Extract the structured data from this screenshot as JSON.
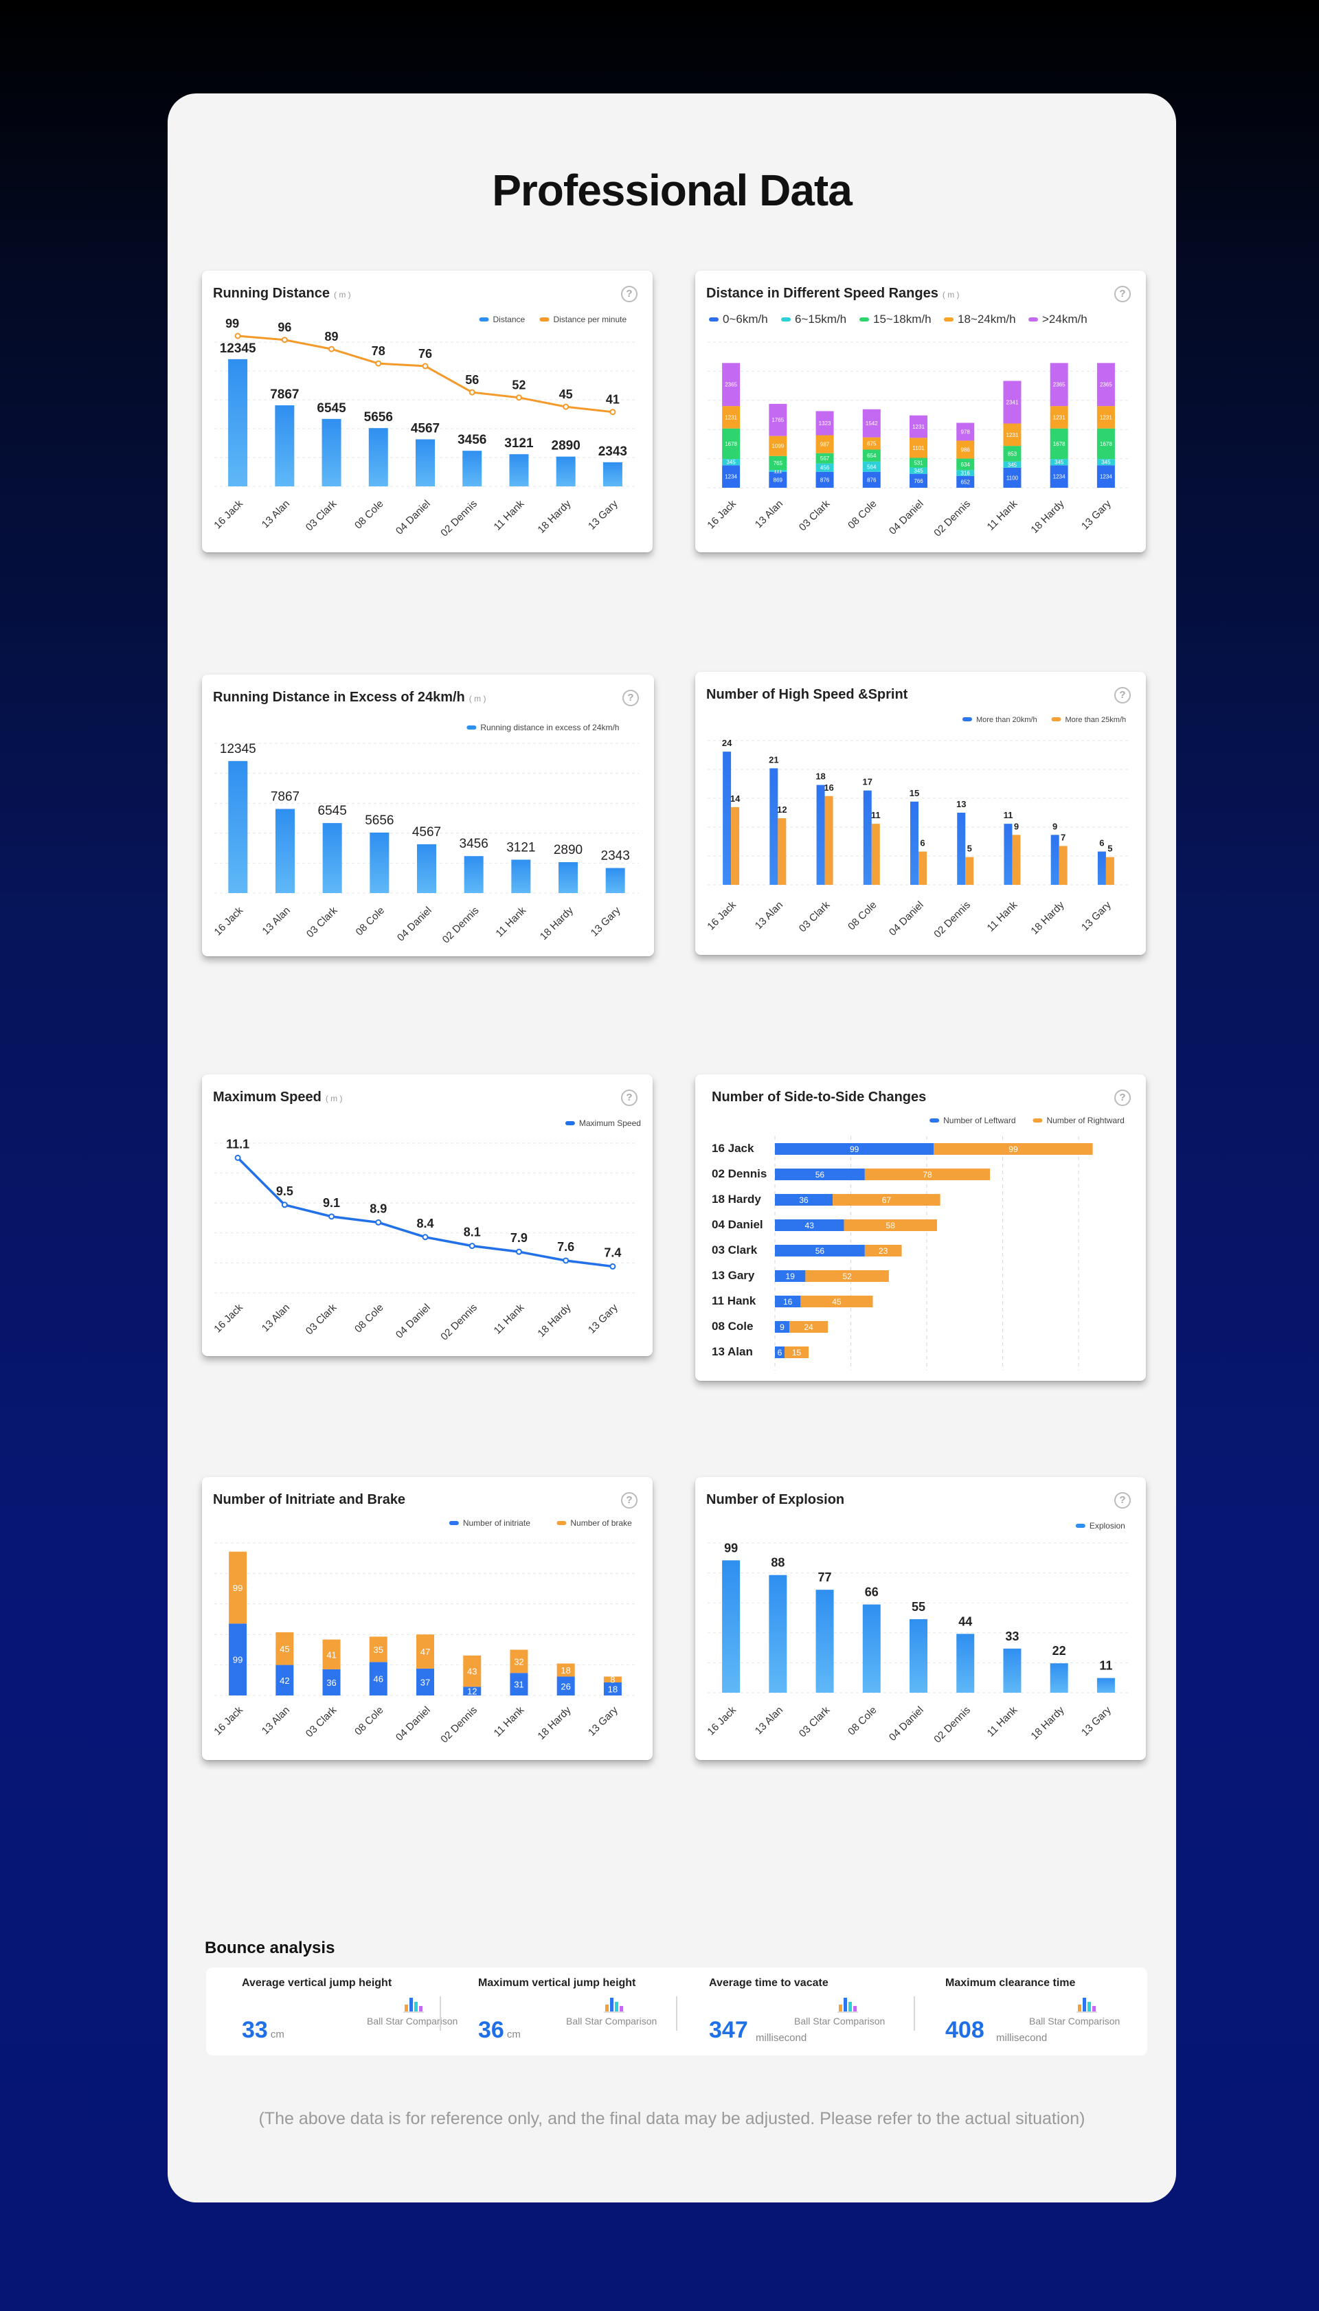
{
  "page_title": "Professional Data",
  "help_icon": "help-circle-icon",
  "chart_data": [
    {
      "id": "running-distance",
      "type": "bar",
      "title": "Running Distance",
      "unit": "( m )",
      "categories": [
        "16 Jack",
        "13 Alan",
        "03 Clark",
        "08 Cole",
        "04 Daniel",
        "02 Dennis",
        "11 Hank",
        "18 Hardy",
        "13 Gary"
      ],
      "series": [
        {
          "name": "Distance",
          "type": "bar",
          "color": "#2f8ff0",
          "values": [
            12345,
            7867,
            6545,
            5656,
            4567,
            3456,
            3121,
            2890,
            2343
          ]
        },
        {
          "name": "Distance per minute",
          "type": "line",
          "color": "#f39a2b",
          "values": [
            99,
            96,
            89,
            78,
            76,
            56,
            52,
            45,
            41
          ]
        }
      ],
      "ylim": [
        0,
        14000
      ],
      "y2lim": [
        0,
        110
      ],
      "legend": "top-right"
    },
    {
      "id": "speed-ranges",
      "type": "bar",
      "stacked": true,
      "title": "Distance in Different Speed Ranges",
      "unit": "( m )",
      "categories": [
        "16 Jack",
        "13 Alan",
        "03 Clark",
        "08 Cole",
        "04 Daniel",
        "02 Dennis",
        "11 Hank",
        "18 Hardy",
        "13 Gary"
      ],
      "series": [
        {
          "name": "0~6km/h",
          "color": "#2d6ef0",
          "values": [
            1234,
            869,
            876,
            876,
            766,
            652,
            1100,
            1234,
            1234
          ]
        },
        {
          "name": "6~15km/h",
          "color": "#2ed0d8",
          "values": [
            345,
            111,
            456,
            564,
            345,
            316,
            345,
            345,
            345
          ]
        },
        {
          "name": "15~18km/h",
          "color": "#2ed46e",
          "values": [
            1678,
            765,
            567,
            654,
            531,
            634,
            853,
            1678,
            1678
          ]
        },
        {
          "name": "18~24km/h",
          "color": "#f7a326",
          "values": [
            1231,
            1099,
            987,
            675,
            1101,
            986,
            1231,
            1231,
            1231
          ]
        },
        {
          "name": ">24km/h",
          "color": "#c46af2",
          "values": [
            2365,
            1765,
            1323,
            1542,
            1231,
            978,
            2341,
            2365,
            2365
          ]
        }
      ],
      "ylim": [
        0,
        8000
      ],
      "legend": "top"
    },
    {
      "id": "excess-24",
      "type": "bar",
      "title": "Running Distance in Excess of 24km/h",
      "unit": "( m )",
      "categories": [
        "16 Jack",
        "13 Alan",
        "03 Clark",
        "08 Cole",
        "04 Daniel",
        "02 Dennis",
        "11 Hank",
        "18 Hardy",
        "13 Gary"
      ],
      "series": [
        {
          "name": "Running distance in excess of 24km/h",
          "color": "#2f8ff0",
          "values": [
            12345,
            7867,
            6545,
            5656,
            4567,
            3456,
            3121,
            2890,
            2343
          ]
        }
      ],
      "ylim": [
        0,
        14000
      ],
      "legend": "top-right"
    },
    {
      "id": "high-speed-sprint",
      "type": "bar",
      "title": "Number of High Speed &Sprint",
      "categories": [
        "16 Jack",
        "13 Alan",
        "03 Clark",
        "08 Cole",
        "04 Daniel",
        "02 Dennis",
        "11 Hank",
        "18 Hardy",
        "13 Gary"
      ],
      "series": [
        {
          "name": "More than 20km/h",
          "color": "#2d74ef",
          "values": [
            24,
            21,
            18,
            17,
            15,
            13,
            11,
            9,
            6
          ]
        },
        {
          "name": "More than 25km/h",
          "color": "#f5a13a",
          "values": [
            14,
            12,
            16,
            11,
            6,
            5,
            9,
            7,
            5
          ]
        }
      ],
      "ylim": [
        0,
        26
      ],
      "legend": "top-right"
    },
    {
      "id": "max-speed",
      "type": "line",
      "title": "Maximum Speed",
      "unit": "( m )",
      "categories": [
        "16 Jack",
        "13 Alan",
        "03 Clark",
        "08 Cole",
        "04 Daniel",
        "02 Dennis",
        "11 Hank",
        "18 Hardy",
        "13 Gary"
      ],
      "series": [
        {
          "name": "Maximum Speed",
          "color": "#2271e8",
          "values": [
            11.1,
            9.5,
            9.1,
            8.9,
            8.4,
            8.1,
            7.9,
            7.6,
            7.4
          ]
        }
      ],
      "ylim": [
        6.5,
        11.6
      ],
      "legend": "top-right"
    },
    {
      "id": "side-to-side",
      "type": "bar",
      "orientation": "horizontal",
      "stacked": true,
      "title": "Number of Side-to-Side Changes",
      "categories": [
        "16 Jack",
        "02 Dennis",
        "18 Hardy",
        "04 Daniel",
        "03 Clark",
        "13 Gary",
        "11 Hank",
        "08 Cole",
        "13 Alan"
      ],
      "series": [
        {
          "name": "Number of Leftward",
          "color": "#2d74ef",
          "values": [
            99,
            56,
            36,
            43,
            56,
            19,
            16,
            9,
            6
          ]
        },
        {
          "name": "Number of Rightward",
          "color": "#f5a13a",
          "values": [
            99,
            78,
            67,
            58,
            23,
            52,
            45,
            24,
            15
          ]
        }
      ],
      "xlim": [
        0,
        220
      ],
      "legend": "top-right"
    },
    {
      "id": "initiate-brake",
      "type": "bar",
      "stacked": true,
      "title": "Number of Initriate and Brake",
      "categories": [
        "16 Jack",
        "13 Alan",
        "03 Clark",
        "08 Cole",
        "04 Daniel",
        "02 Dennis",
        "11 Hank",
        "18 Hardy",
        "13 Gary"
      ],
      "series": [
        {
          "name": "Number of initriate",
          "color": "#2d74ef",
          "values": [
            99,
            42,
            36,
            46,
            37,
            12,
            31,
            26,
            18
          ]
        },
        {
          "name": "Number of brake",
          "color": "#f5a13a",
          "values": [
            99,
            45,
            41,
            35,
            47,
            43,
            32,
            18,
            8
          ]
        }
      ],
      "ylim": [
        0,
        210
      ],
      "legend": "top-right"
    },
    {
      "id": "explosion",
      "type": "bar",
      "title": "Number of Explosion",
      "categories": [
        "16 Jack",
        "13 Alan",
        "03 Clark",
        "08 Cole",
        "04 Daniel",
        "02 Dennis",
        "11 Hank",
        "18 Hardy",
        "13 Gary"
      ],
      "series": [
        {
          "name": "Explosion",
          "color": "#2f8ff0",
          "values": [
            99,
            88,
            77,
            66,
            55,
            44,
            33,
            22,
            11
          ]
        }
      ],
      "ylim": [
        0,
        112
      ],
      "legend": "top-right"
    }
  ],
  "bounce": {
    "title": "Bounce analysis",
    "metrics": [
      {
        "label": "Average vertical jump height",
        "value": "33",
        "unit": "cm",
        "compare": "Ball Star Comparison",
        "icon": "bar-chart-icon"
      },
      {
        "label": "Maximum vertical jump height",
        "value": "36",
        "unit": "cm",
        "compare": "Ball Star Comparison",
        "icon": "bar-chart-icon"
      },
      {
        "label": "Average time to vacate",
        "value": "347",
        "unit": "millisecond",
        "compare": "Ball Star Comparison",
        "icon": "bar-chart-icon"
      },
      {
        "label": "Maximum clearance time",
        "value": "408",
        "unit": "millisecond",
        "compare": "Ball Star Comparison",
        "icon": "bar-chart-icon"
      }
    ]
  },
  "disclaimer": "(The above data is for reference only, and the final data may be adjusted. Please refer to the actual situation)"
}
